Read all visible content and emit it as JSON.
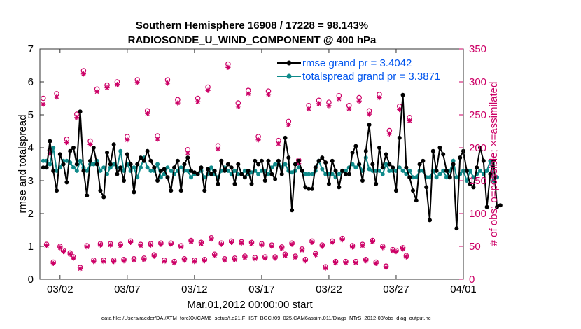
{
  "chart_data": {
    "type": "line",
    "title_line1": "Southern Hemisphere 16908 / 17228 = 98.143%",
    "title_line2": "RADIOSONDE_U_WIND_COMPONENT @ 400 hPa",
    "ylabel_left": "rmse and totalspread",
    "ylabel_right": "# of obs: o=possible; ×=assimilated",
    "xlabel": "Mar.01,2012 00:00:00 start",
    "footnote": "data file: /Users/raeder/DAI/ATM_forcXX/CAM6_setup/f.e21.FHIST_BGC.f09_025.CAM6assim.011/Diags_NTrS_2012-03/obs_diag_output.nc",
    "xlim": [
      0.5,
      32
    ],
    "ylim_left": [
      0,
      7
    ],
    "ylim_right": [
      0,
      350
    ],
    "x_ticks": [
      {
        "x": 2,
        "label": "03/02"
      },
      {
        "x": 7,
        "label": "03/07"
      },
      {
        "x": 12,
        "label": "03/12"
      },
      {
        "x": 17,
        "label": "03/17"
      },
      {
        "x": 22,
        "label": "03/22"
      },
      {
        "x": 27,
        "label": "03/27"
      },
      {
        "x": 32,
        "label": "04/01"
      }
    ],
    "y_ticks_left": [
      "0",
      "1",
      "2",
      "3",
      "4",
      "5",
      "6",
      "7"
    ],
    "y_ticks_right": [
      "0",
      "50",
      "100",
      "150",
      "200",
      "250",
      "300",
      "350"
    ],
    "colors": {
      "rmse": "#000000",
      "spread": "#0f8a8a",
      "obs": "#cc0066",
      "legend_text": "#0055ee"
    },
    "series": [
      {
        "name": "rmse",
        "legend": "rmse grand pr = 3.4042",
        "start": 0.75,
        "step": 0.25,
        "values": [
          3.4,
          3.4,
          4.2,
          3.3,
          2.7,
          3.8,
          3.5,
          2.95,
          3.9,
          4.0,
          3.5,
          5.1,
          3.3,
          2.55,
          3.6,
          4.0,
          3.5,
          2.7,
          2.5,
          3.85,
          3.5,
          4.1,
          3.2,
          3.4,
          3.0,
          3.8,
          3.5,
          2.65,
          3.5,
          3.7,
          3.6,
          3.9,
          3.6,
          3.4,
          3.0,
          3.3,
          3.35,
          3.1,
          2.7,
          3.4,
          3.6,
          2.7,
          3.5,
          3.7,
          3.3,
          3.25,
          3.2,
          3.4,
          2.7,
          3.35,
          3.2,
          3.3,
          2.9,
          3.6,
          3.3,
          3.5,
          3.4,
          2.9,
          3.5,
          3.2,
          3.1,
          3.3,
          2.9,
          3.6,
          3.5,
          3.6,
          3.0,
          3.6,
          3.2,
          3.05,
          3.6,
          3.2,
          4.3,
          3.7,
          2.1,
          3.5,
          3.6,
          3.3,
          2.8,
          2.75,
          2.75,
          3.4,
          3.6,
          3.7,
          3.55,
          2.9,
          3.6,
          3.3,
          2.8,
          3.3,
          3.2,
          3.2,
          3.85,
          4.05,
          3.5,
          3.0,
          3.9,
          4.7,
          3.5,
          2.9,
          4.0,
          3.4,
          3.8,
          3.5,
          3.4,
          2.7,
          4.3,
          5.6,
          3.4,
          3.1,
          2.7,
          2.4,
          3.5,
          3.6,
          2.8,
          1.8,
          3.9,
          3.3,
          4.0,
          3.8,
          3.3,
          3.1,
          3.5,
          1.55,
          3.7,
          3.9,
          3.3,
          2.9,
          2.8,
          3.4,
          4.0,
          3.6,
          2.2,
          3.2,
          3.6,
          2.2,
          2.25
        ],
        "grand_value": 3.4042
      },
      {
        "name": "totalspread",
        "legend": "totalspread grand pr = 3.3871",
        "start": 0.75,
        "step": 0.25,
        "values": [
          3.6,
          3.6,
          3.5,
          4.0,
          3.3,
          3.4,
          3.6,
          3.6,
          3.55,
          3.4,
          3.3,
          3.6,
          3.4,
          3.3,
          3.5,
          3.5,
          3.6,
          3.3,
          3.4,
          3.2,
          3.4,
          3.5,
          3.4,
          3.9,
          3.3,
          3.5,
          3.3,
          3.4,
          3.1,
          3.4,
          3.7,
          3.4,
          3.3,
          3.3,
          3.5,
          3.1,
          3.2,
          3.4,
          3.3,
          3.2,
          3.3,
          3.4,
          3.3,
          3.3,
          3.1,
          3.2,
          3.2,
          3.3,
          3.1,
          3.2,
          3.4,
          3.2,
          3.1,
          3.3,
          3.4,
          3.3,
          3.2,
          3.3,
          3.2,
          3.2,
          3.3,
          3.2,
          3.25,
          3.3,
          3.2,
          3.3,
          3.3,
          3.2,
          3.4,
          3.5,
          3.5,
          3.4,
          3.5,
          3.3,
          3.25,
          3.3,
          3.4,
          3.3,
          3.2,
          3.2,
          3.2,
          3.3,
          3.6,
          3.35,
          3.2,
          3.2,
          3.2,
          3.1,
          3.2,
          3.3,
          3.3,
          3.4,
          3.5,
          3.4,
          3.5,
          3.3,
          3.7,
          3.35,
          3.3,
          3.3,
          3.3,
          3.2,
          3.5,
          3.3,
          3.3,
          3.3,
          3.4,
          3.3,
          3.2,
          3.3,
          3.1,
          3.1,
          3.3,
          3.3,
          3.1,
          3.1,
          3.3,
          3.1,
          3.2,
          3.3,
          3.1,
          3.3,
          3.6,
          3.1,
          3.2,
          3.3,
          3.0,
          3.3,
          3.1,
          3.2,
          3.3,
          3.2,
          3.3,
          3.6,
          3.0,
          3.1
        ],
        "grand_value": 3.3871
      }
    ],
    "obs_counts": {
      "start": 0.75,
      "step": 0.25,
      "possible": [
        275,
        53,
        196,
        26,
        282,
        50,
        44,
        213,
        40,
        34,
        251,
        18,
        317,
        51,
        210,
        29,
        289,
        54,
        29,
        295,
        54,
        29,
        300,
        53,
        30,
        217,
        58,
        31,
        303,
        53,
        32,
        256,
        54,
        37,
        218,
        55,
        29,
        303,
        55,
        27,
        273,
        51,
        31,
        197,
        59,
        29,
        275,
        56,
        30,
        292,
        63,
        38,
        203,
        55,
        31,
        327,
        58,
        32,
        268,
        57,
        35,
        287,
        56,
        33,
        217,
        54,
        34,
        286,
        52,
        34,
        211,
        49,
        38,
        240,
        55,
        35,
        181,
        46,
        30,
        264,
        58,
        39,
        272,
        52,
        19,
        269,
        58,
        27,
        279,
        62,
        27,
        264,
        51,
        27,
        276,
        53,
        30,
        256,
        59,
        26,
        281,
        50,
        20,
        226,
        45,
        44,
        263,
        48,
        36,
        246
      ],
      "assimilated": [
        266,
        51,
        191,
        24,
        277,
        48,
        42,
        208,
        38,
        32,
        246,
        16,
        312,
        49,
        205,
        27,
        285,
        52,
        27,
        291,
        52,
        27,
        296,
        51,
        28,
        212,
        56,
        29,
        299,
        51,
        30,
        252,
        52,
        35,
        213,
        53,
        27,
        298,
        53,
        25,
        268,
        49,
        29,
        192,
        57,
        27,
        270,
        54,
        28,
        287,
        61,
        36,
        198,
        53,
        29,
        322,
        56,
        30,
        263,
        55,
        33,
        282,
        54,
        31,
        212,
        52,
        32,
        281,
        50,
        32,
        206,
        47,
        36,
        235,
        53,
        33,
        176,
        44,
        28,
        259,
        56,
        37,
        267,
        50,
        17,
        264,
        56,
        25,
        274,
        60,
        25,
        259,
        49,
        25,
        271,
        51,
        28,
        251,
        57,
        24,
        276,
        48,
        18,
        221,
        43,
        42,
        258,
        46,
        34,
        241
      ]
    }
  }
}
